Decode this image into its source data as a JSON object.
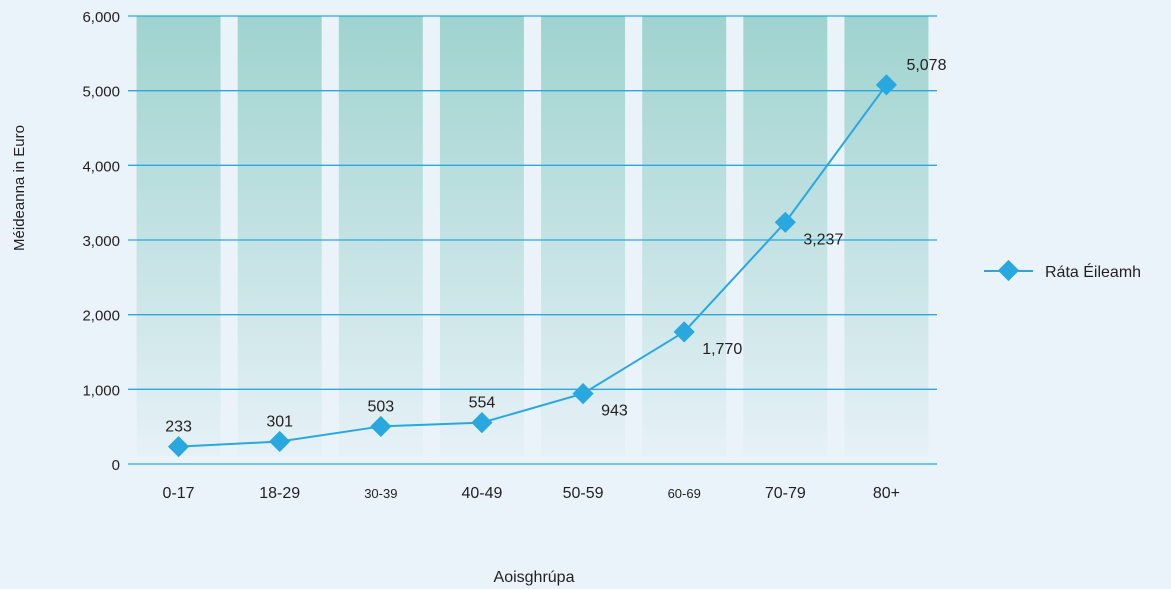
{
  "chart_data": {
    "type": "line",
    "categories": [
      "0-17",
      "18-29",
      "30-39",
      "40-49",
      "50-59",
      "60-69",
      "70-79",
      "80+"
    ],
    "series": [
      {
        "name": "Ráta Éileamh",
        "values": [
          233,
          301,
          503,
          554,
          943,
          1770,
          3237,
          5078
        ]
      }
    ],
    "data_labels": [
      "233",
      "301",
      "503",
      "554",
      "943",
      "1,770",
      "3,237",
      "5,078"
    ],
    "y_ticks": [
      "0",
      "1,000",
      "2,000",
      "3,000",
      "4,000",
      "5,000",
      "6,000"
    ],
    "xlabel": "Aoisghrúpa",
    "ylabel": "Méideanna in Euro",
    "ylim": [
      0,
      6000
    ],
    "grid": true,
    "legend_position": "right",
    "colors": {
      "line": "#29a8e0",
      "grid": "#29a8e0",
      "band_top": "#9fd3cf",
      "band_bottom": "#e6f1f7",
      "background": "#eaf3fa"
    }
  }
}
